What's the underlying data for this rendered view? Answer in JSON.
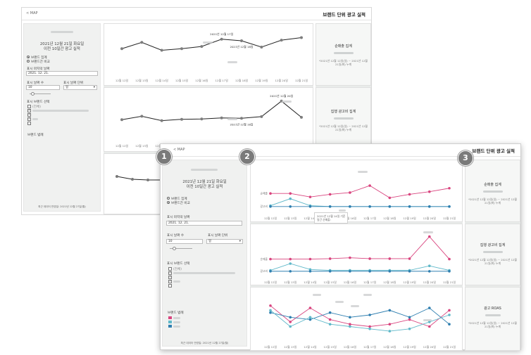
{
  "header": {
    "back_label": "< MAP",
    "title": "브랜드 단위 광고 실적"
  },
  "sidebar": {
    "date_line": "2021년 12월 21일 화요일",
    "period_line": "이전 10일간 광고 실적",
    "radio_aggregate": "브랜드 집계",
    "radio_compare": "브랜드간 비교",
    "last_date_label": "표시 마지막 날짜",
    "last_date_value": "2021. 12. 21.",
    "days_label": "표시 날짜 수",
    "days_value": "10",
    "unit_label": "표시 날짜 단위",
    "unit_value": "일",
    "brand_select_label": "표시 브랜드 선택",
    "all_option": "(전체)",
    "legend_label": "브랜드 범례",
    "updated": "최근 데이터 반영일: 2021년 12월 27일(월)"
  },
  "badges": [
    "1",
    "2",
    "3"
  ],
  "kpis": [
    {
      "title": "순매출 집계",
      "sub": "*2021년 12월 12일(일) ~ 2021년 12월 21일(화) 누계"
    },
    {
      "title": "집행 광고비 집계",
      "sub": "*2021년 12월 12일(일) ~ 2021년 12월 21일(화) 누계"
    },
    {
      "title": "광고 ROAS",
      "sub": "*2021년 12월 12일(일) ~ 2021년 12월 21일(화) 누계"
    }
  ],
  "series_labels": {
    "sales": "순매출",
    "spend": "광고비"
  },
  "tooltip": {
    "line1": "2021년 12월 14일 기준",
    "line2": "일간 순매출:"
  },
  "chart_data": [
    {
      "type": "line",
      "categories": [
        "12월 12일",
        "12월 13일",
        "12월 14일",
        "12월 15일",
        "12월 16일",
        "12월 17일",
        "12월 18일",
        "12월 19일",
        "12월 20일",
        "12월 21일"
      ],
      "series": [
        {
          "values": [
            55,
            75,
            50,
            55,
            62,
            85,
            80,
            60,
            82,
            90
          ]
        }
      ],
      "annotations": [
        {
          "text": "2021년 12월 17일",
          "x": "12월 17일"
        },
        {
          "text": "2021년 12월 18일",
          "x": "12월 18일"
        }
      ]
    },
    {
      "type": "line",
      "categories": [
        "12월 12일",
        "12월 13일",
        "12월 14일",
        "12월 15일",
        "12월 16일",
        "12월 17일",
        "12월 18일",
        "12월 19일",
        "12월 20일",
        "12월 21일"
      ],
      "series": [
        {
          "values": [
            35,
            45,
            32,
            36,
            37,
            40,
            39,
            44,
            90,
            42
          ]
        }
      ],
      "annotations": [
        {
          "text": "2021년 12월 20일",
          "x": "12월 20일"
        },
        {
          "text": "2021년 12월 18일",
          "x": "12월 18일"
        }
      ]
    },
    {
      "type": "line",
      "categories": [
        "12월 12일",
        "12월 13일",
        "12월 14일",
        "12월 15일",
        "12월 16일",
        "12월 17일",
        "12월 18일",
        "12월 19일",
        "12월 20일",
        "12월 21일"
      ],
      "series": [
        {
          "name": "순매출",
          "values": [
            40,
            40,
            32,
            38,
            42,
            58,
            30,
            38,
            44,
            52
          ],
          "color": "#d9457f"
        },
        {
          "values": [
            12,
            28,
            12,
            10,
            10,
            10,
            10,
            10,
            10,
            10
          ],
          "color": "#5fb8c9"
        },
        {
          "name": "광고비",
          "values": [
            10,
            10,
            10,
            10,
            10,
            10,
            10,
            10,
            10,
            10
          ],
          "color": "#2f7fb0"
        }
      ]
    },
    {
      "type": "line",
      "categories": [
        "12월 12일",
        "12월 13일",
        "12월 14일",
        "12월 15일",
        "12월 16일",
        "12월 17일",
        "12월 18일",
        "12월 19일",
        "12월 20일",
        "12월 21일"
      ],
      "series": [
        {
          "name": "순매출",
          "values": [
            35,
            35,
            35,
            36,
            38,
            36,
            36,
            36,
            85,
            35
          ],
          "color": "#d9457f"
        },
        {
          "values": [
            10,
            25,
            12,
            10,
            10,
            10,
            10,
            10,
            20,
            10
          ],
          "color": "#5fb8c9"
        },
        {
          "name": "광고비",
          "values": [
            8,
            8,
            8,
            8,
            8,
            8,
            8,
            8,
            8,
            8
          ],
          "color": "#2f7fb0"
        }
      ]
    },
    {
      "type": "line",
      "categories": [
        "12월 12일",
        "12월 13일",
        "12월 14일",
        "12월 15일",
        "12월 16일",
        "12월 17일",
        "12월 18일",
        "12월 19일",
        "12월 20일",
        "12월 21일"
      ],
      "series": [
        {
          "values": [
            70,
            35,
            65,
            40,
            30,
            25,
            30,
            40,
            25,
            60
          ],
          "color": "#d9457f"
        },
        {
          "values": [
            55,
            45,
            40,
            55,
            45,
            50,
            60,
            45,
            65,
            30
          ],
          "color": "#2f7fb0"
        },
        {
          "values": [
            60,
            25,
            45,
            30,
            25,
            20,
            15,
            20,
            35,
            50
          ],
          "color": "#5fb8c9"
        }
      ]
    }
  ]
}
